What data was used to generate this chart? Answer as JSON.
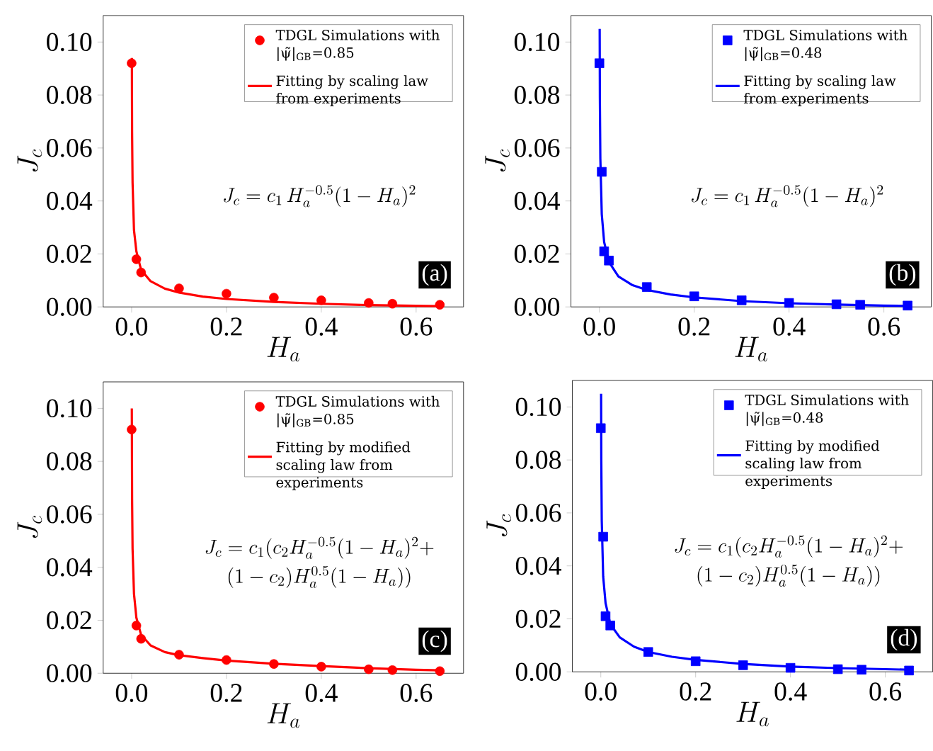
{
  "chart_data": [
    {
      "type": "scatter",
      "xlabel": "H_a",
      "ylabel": "J_c",
      "xlim": [
        -0.06,
        0.7
      ],
      "ylim": [
        0,
        0.11
      ],
      "xticks": [
        {
          "value": 0,
          "label": "0.0"
        },
        {
          "value": 0.2,
          "label": "0.2"
        },
        {
          "value": 0.4,
          "label": "0.4"
        },
        {
          "value": 0.6,
          "label": "0.6"
        }
      ],
      "yticks": [
        {
          "value": 0,
          "label": "0.00"
        },
        {
          "value": 0.02,
          "label": "0.02"
        },
        {
          "value": 0.04,
          "label": "0.04"
        },
        {
          "value": 0.06,
          "label": "0.06"
        },
        {
          "value": 0.08,
          "label": "0.08"
        },
        {
          "value": 0.1,
          "label": "0.10"
        }
      ],
      "legend": "top right",
      "annotations": [
        "J_c= c_1\\, H_a^{-0.5}(1-H_a)^2",
        "(a)"
      ],
      "series": [
        {
          "name": "TDGL Simulations with |ψ̃|$_{GB}$=0.85",
          "type": "scatter",
          "marker": "circle",
          "color": "#ff0000",
          "x": [
            0,
            0.01,
            0.02,
            0.1,
            0.2,
            0.3,
            0.4,
            0.5,
            0.55,
            0.65
          ],
          "values": [
            0.092,
            0.018,
            0.013,
            0.007,
            0.005,
            0.0035,
            0.0025,
            0.0015,
            0.0012,
            0.0008
          ]
        },
        {
          "name": "Fitting by scaling law from experiments",
          "type": "line",
          "color": "#ff0000",
          "x": [
            0.0005,
            0.001,
            0.002,
            0.005,
            0.01,
            0.02,
            0.04,
            0.07,
            0.1,
            0.15,
            0.2,
            0.3,
            0.4,
            0.5,
            0.6,
            0.65
          ],
          "values": [
            0.094,
            0.066,
            0.047,
            0.029,
            0.021,
            0.014,
            0.0097,
            0.0069,
            0.0054,
            0.0039,
            0.003,
            0.0019,
            0.0012,
            0.0007,
            0.0004,
            0.0003
          ]
        }
      ]
    },
    {
      "type": "scatter",
      "xlabel": "H_a",
      "ylabel": "J_c",
      "xlim": [
        -0.06,
        0.7
      ],
      "ylim": [
        0,
        0.11
      ],
      "xticks": [
        {
          "value": 0,
          "label": "0.0"
        },
        {
          "value": 0.2,
          "label": "0.2"
        },
        {
          "value": 0.4,
          "label": "0.4"
        },
        {
          "value": 0.6,
          "label": "0.6"
        }
      ],
      "yticks": [
        {
          "value": 0,
          "label": "0.00"
        },
        {
          "value": 0.02,
          "label": "0.02"
        },
        {
          "value": 0.04,
          "label": "0.04"
        },
        {
          "value": 0.06,
          "label": "0.06"
        },
        {
          "value": 0.08,
          "label": "0.08"
        },
        {
          "value": 0.1,
          "label": "0.10"
        }
      ],
      "legend": "top right",
      "annotations": [
        "J_c= c_1\\, H_a^{-0.5}(1-H_a)^2",
        "(b)"
      ],
      "series": [
        {
          "name": "TDGL Simulations with |ψ̃|$_{GB}$=0.48",
          "type": "scatter",
          "marker": "square",
          "color": "#0000ff",
          "x": [
            0,
            0.005,
            0.01,
            0.02,
            0.1,
            0.2,
            0.3,
            0.4,
            0.5,
            0.55,
            0.65
          ],
          "values": [
            0.092,
            0.051,
            0.021,
            0.0175,
            0.0075,
            0.004,
            0.0025,
            0.0015,
            0.001,
            0.0008,
            0.0005
          ]
        },
        {
          "name": "Fitting by scaling law from experiments",
          "type": "line",
          "color": "#0000ff",
          "x": [
            0.0006,
            0.001,
            0.002,
            0.005,
            0.01,
            0.02,
            0.04,
            0.07,
            0.1,
            0.15,
            0.2,
            0.3,
            0.4,
            0.5,
            0.6,
            0.65
          ],
          "values": [
            0.105,
            0.079,
            0.056,
            0.035,
            0.0245,
            0.017,
            0.0115,
            0.0082,
            0.0064,
            0.0047,
            0.0036,
            0.0022,
            0.0014,
            0.0009,
            0.0005,
            0.0004
          ]
        }
      ]
    },
    {
      "type": "scatter",
      "xlabel": "H_a",
      "ylabel": "J_c",
      "xlim": [
        -0.06,
        0.7
      ],
      "ylim": [
        0,
        0.11
      ],
      "xticks": [
        {
          "value": 0,
          "label": "0.0"
        },
        {
          "value": 0.2,
          "label": "0.2"
        },
        {
          "value": 0.4,
          "label": "0.4"
        },
        {
          "value": 0.6,
          "label": "0.6"
        }
      ],
      "yticks": [
        {
          "value": 0,
          "label": "0.00"
        },
        {
          "value": 0.02,
          "label": "0.02"
        },
        {
          "value": 0.04,
          "label": "0.04"
        },
        {
          "value": 0.06,
          "label": "0.06"
        },
        {
          "value": 0.08,
          "label": "0.08"
        },
        {
          "value": 0.1,
          "label": "0.10"
        }
      ],
      "legend": "top right",
      "annotations": [
        "J_c= c_1(c_2H_a^{-0.5}(1-H_a)^2+",
        "(1-c_2)H_a^{0.5}(1-H_a))",
        "(c)"
      ],
      "series": [
        {
          "name": "TDGL Simulations with |ψ̃|$_{GB}$=0.85",
          "type": "scatter",
          "marker": "circle",
          "color": "#ff0000",
          "x": [
            0,
            0.01,
            0.02,
            0.1,
            0.2,
            0.3,
            0.4,
            0.5,
            0.55,
            0.65
          ],
          "values": [
            0.092,
            0.018,
            0.013,
            0.007,
            0.005,
            0.0035,
            0.0025,
            0.0015,
            0.0012,
            0.0008
          ]
        },
        {
          "name": "Fitting by modified scaling law from experiments",
          "type": "line",
          "color": "#ff0000",
          "x": [
            0.0004,
            0.001,
            0.002,
            0.005,
            0.01,
            0.02,
            0.04,
            0.07,
            0.1,
            0.15,
            0.2,
            0.3,
            0.4,
            0.5,
            0.6,
            0.65
          ],
          "values": [
            0.1,
            0.066,
            0.047,
            0.03,
            0.021,
            0.0145,
            0.0105,
            0.008,
            0.0068,
            0.0057,
            0.0048,
            0.0036,
            0.0027,
            0.0019,
            0.0013,
            0.0011
          ]
        }
      ]
    },
    {
      "type": "scatter",
      "xlabel": "H_a",
      "ylabel": "J_c",
      "xlim": [
        -0.06,
        0.7
      ],
      "ylim": [
        0,
        0.11
      ],
      "xticks": [
        {
          "value": 0,
          "label": "0.0"
        },
        {
          "value": 0.2,
          "label": "0.2"
        },
        {
          "value": 0.4,
          "label": "0.4"
        },
        {
          "value": 0.6,
          "label": "0.6"
        }
      ],
      "yticks": [
        {
          "value": 0,
          "label": "0.00"
        },
        {
          "value": 0.02,
          "label": "0.02"
        },
        {
          "value": 0.04,
          "label": "0.04"
        },
        {
          "value": 0.06,
          "label": "0.06"
        },
        {
          "value": 0.08,
          "label": "0.08"
        },
        {
          "value": 0.1,
          "label": "0.10"
        }
      ],
      "legend": "top right",
      "annotations": [
        "J_c= c_1(c_2H_a^{-0.5}(1-H_a)^2+",
        "(1-c_2)H_a^{0.5}(1-H_a))",
        "(d)"
      ],
      "series": [
        {
          "name": "TDGL Simulations with |ψ̃|$_{GB}$=0.48",
          "type": "scatter",
          "marker": "square",
          "color": "#0000ff",
          "x": [
            0,
            0.005,
            0.01,
            0.02,
            0.1,
            0.2,
            0.3,
            0.4,
            0.5,
            0.55,
            0.65
          ],
          "values": [
            0.092,
            0.051,
            0.021,
            0.0175,
            0.0075,
            0.004,
            0.0025,
            0.0015,
            0.001,
            0.0008,
            0.0005
          ]
        },
        {
          "name": "Fitting by modified scaling law from experiments",
          "type": "line",
          "color": "#0000ff",
          "x": [
            0.0006,
            0.001,
            0.002,
            0.005,
            0.01,
            0.02,
            0.04,
            0.07,
            0.1,
            0.15,
            0.2,
            0.3,
            0.4,
            0.5,
            0.6,
            0.65
          ],
          "values": [
            0.105,
            0.08,
            0.057,
            0.036,
            0.026,
            0.018,
            0.013,
            0.0095,
            0.0075,
            0.0057,
            0.0045,
            0.003,
            0.002,
            0.0014,
            0.001,
            0.0008
          ]
        }
      ]
    }
  ]
}
